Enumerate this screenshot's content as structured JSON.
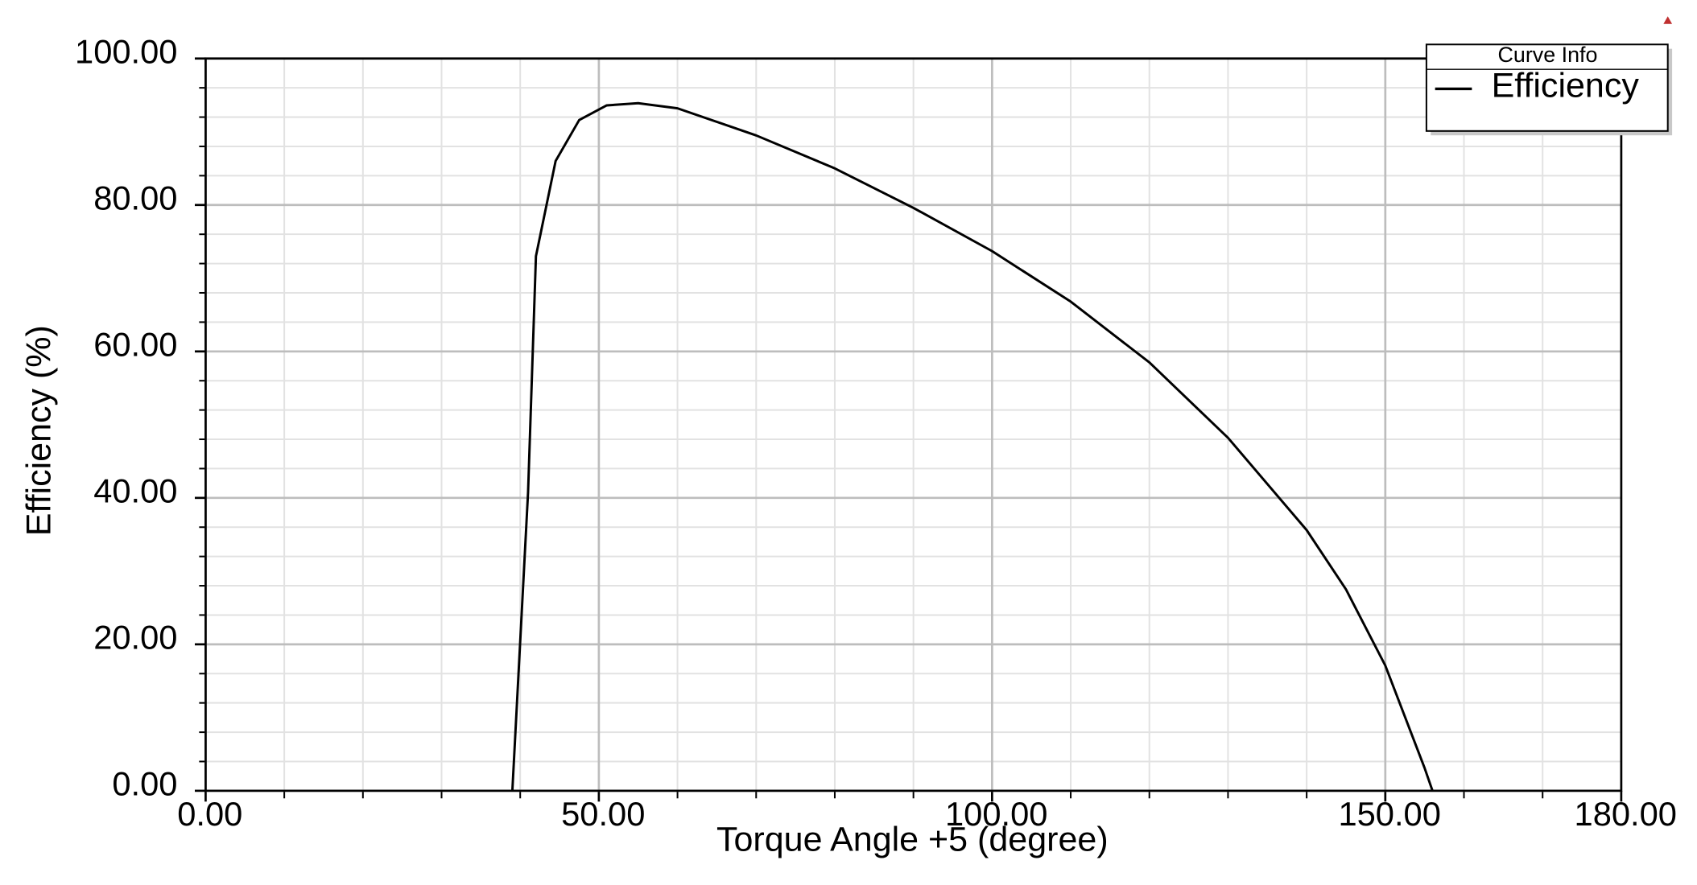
{
  "chart_data": {
    "type": "line",
    "x_label": "Torque Angle +5 (degree)",
    "y_label": "Efficiency (%)",
    "legend_title": "Curve Info",
    "legend_position": "upper right",
    "grid": true,
    "xlim": [
      0,
      180
    ],
    "ylim": [
      0,
      100
    ],
    "xticks": [
      {
        "value": 0,
        "label": "0.00"
      },
      {
        "value": 50,
        "label": "50.00"
      },
      {
        "value": 100,
        "label": "100.00"
      },
      {
        "value": 150,
        "label": "150.00"
      },
      {
        "value": 180,
        "label": "180.00"
      }
    ],
    "yticks": [
      {
        "value": 0,
        "label": "0.00"
      },
      {
        "value": 20,
        "label": "20.00"
      },
      {
        "value": 40,
        "label": "40.00"
      },
      {
        "value": 60,
        "label": "60.00"
      },
      {
        "value": 80,
        "label": "80.00"
      },
      {
        "value": 100,
        "label": "100.00"
      }
    ],
    "minor_xticks": [
      10,
      20,
      30,
      40,
      60,
      70,
      80,
      90,
      110,
      120,
      130,
      140,
      160,
      170
    ],
    "minor_yticks": [
      4,
      8,
      12,
      16,
      24,
      28,
      32,
      36,
      44,
      48,
      52,
      56,
      64,
      68,
      72,
      76,
      84,
      88,
      92,
      96
    ],
    "x": [
      39,
      41,
      42,
      44.5,
      47.5,
      51,
      55,
      60,
      70,
      80,
      90,
      100,
      110,
      120,
      130,
      140,
      145,
      150,
      155,
      156
    ],
    "series": [
      {
        "name": "Efficiency",
        "color": "#000000",
        "values": [
          0,
          40.8,
          73,
          86,
          91.6,
          93.6,
          93.9,
          93.2,
          89.5,
          85,
          79.6,
          73.7,
          66.8,
          58.5,
          48.2,
          35.6,
          27.5,
          17.1,
          3.1,
          0
        ]
      }
    ]
  }
}
